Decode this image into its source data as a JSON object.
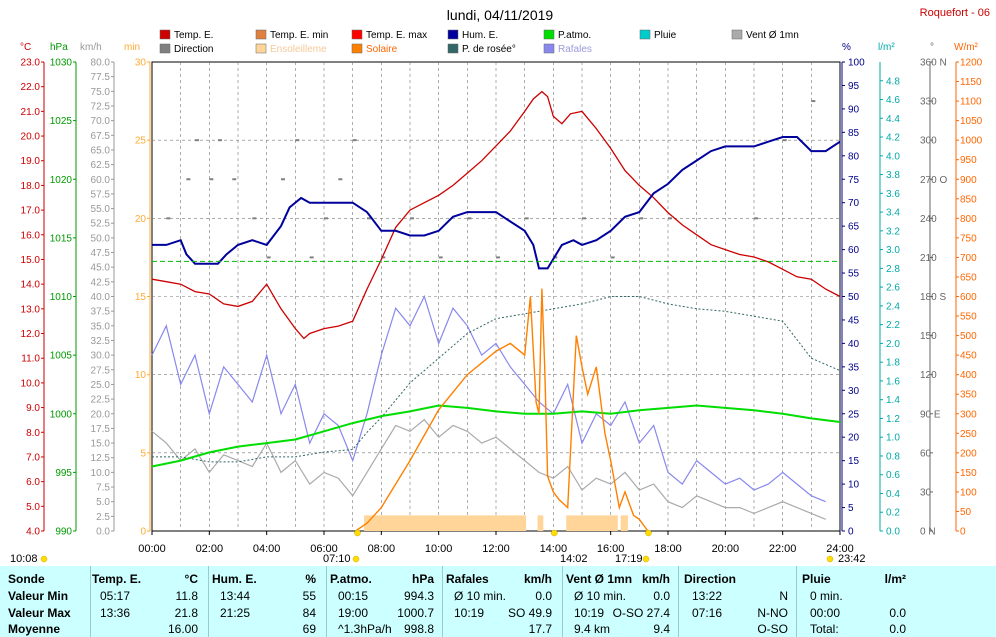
{
  "title": "lundi, 04/11/2019",
  "station": "Roquefort - 06",
  "colors": {
    "temp": "#cc0000",
    "temp_min": "#e08040",
    "temp_max": "#ff0000",
    "direction": "#808080",
    "ensoleillement": "#ffd59a",
    "solaire": "#ff8000",
    "hum": "#00009c",
    "dew": "#336666",
    "patmo": "#00dd00",
    "pluie": "#00cccc",
    "rafales": "#8888ee",
    "vent": "#aaaaaa",
    "hpa": "#009900",
    "kmh": "#888888",
    "min": "#ffaa33",
    "pct": "#000088",
    "lm2": "#00aaaa",
    "wm2": "#ff6600"
  },
  "legend": [
    {
      "label": "Temp. E.",
      "color": "#cc0000"
    },
    {
      "label": "Temp. E. min",
      "color": "#e08040"
    },
    {
      "label": "Temp. E. max",
      "color": "#ff0000"
    },
    {
      "label": "Hum. E.",
      "color": "#00009c"
    },
    {
      "label": "P.atmo.",
      "color": "#00dd00"
    },
    {
      "label": "Pluie",
      "color": "#00cccc"
    },
    {
      "label": "Vent Ø 1mn",
      "color": "#aaaaaa"
    },
    {
      "label": "Direction",
      "color": "#808080"
    },
    {
      "label": "Ensoleilleme",
      "color": "#ffd59a"
    },
    {
      "label": "Solaire",
      "color": "#ff8000"
    },
    {
      "label": "P. de rosée°",
      "color": "#336666"
    },
    {
      "label": "Rafales",
      "color": "#8888ee"
    }
  ],
  "axis_units": {
    "temp": "°C",
    "hpa": "hPa",
    "kmh": "km/h",
    "min": "min",
    "pct": "%",
    "lm2": "l/m²",
    "deg": "°",
    "wm2": "W/m²"
  },
  "chart_data": {
    "type": "line",
    "x_unit": "hour",
    "xlim": [
      0,
      24
    ],
    "x_ticks": [
      "00:00",
      "02:00",
      "04:00",
      "06:00",
      "08:00",
      "10:00",
      "12:00",
      "14:00",
      "16:00",
      "18:00",
      "20:00",
      "22:00",
      "24:00"
    ],
    "axes": {
      "temp": {
        "range": [
          4,
          23
        ],
        "ticks": [
          "4.0",
          "5.0",
          "6.0",
          "7.0",
          "8.0",
          "9.0",
          "10.0",
          "11.0",
          "12.0",
          "13.0",
          "14.0",
          "15.0",
          "16.0",
          "17.0",
          "18.0",
          "19.0",
          "20.0",
          "21.0",
          "22.0",
          "23.0"
        ]
      },
      "hpa": {
        "range": [
          990,
          1030
        ],
        "ticks": [
          "990",
          "995",
          "1000",
          "1005",
          "1010",
          "1015",
          "1020",
          "1025",
          "1030"
        ]
      },
      "kmh": {
        "range": [
          0,
          80
        ],
        "ticks": [
          "0.0",
          "2.5",
          "5.0",
          "7.5",
          "10.0",
          "12.5",
          "15.0",
          "17.5",
          "20.0",
          "22.5",
          "25.0",
          "27.5",
          "30.0",
          "32.5",
          "35.0",
          "37.5",
          "40.0",
          "42.5",
          "45.0",
          "47.5",
          "50.0",
          "52.5",
          "55.0",
          "57.5",
          "60.0",
          "62.5",
          "65.0",
          "67.5",
          "70.0",
          "72.5",
          "75.0",
          "77.5",
          "80.0"
        ]
      },
      "min": {
        "range": [
          0,
          30
        ],
        "ticks": [
          "0",
          "5",
          "10",
          "15",
          "20",
          "25",
          "30"
        ]
      },
      "pct": {
        "range": [
          0,
          100
        ],
        "ticks": [
          "0",
          "5",
          "10",
          "15",
          "20",
          "25",
          "30",
          "35",
          "40",
          "45",
          "50",
          "55",
          "60",
          "65",
          "70",
          "75",
          "80",
          "85",
          "90",
          "95",
          "100"
        ]
      },
      "lm2": {
        "range": [
          0,
          5
        ],
        "ticks": [
          "0.0",
          "0.2",
          "0.4",
          "0.6",
          "0.8",
          "1.0",
          "1.2",
          "1.4",
          "1.6",
          "1.8",
          "2.0",
          "2.2",
          "2.4",
          "2.6",
          "2.8",
          "3.0",
          "3.2",
          "3.4",
          "3.6",
          "3.8",
          "4.0",
          "4.2",
          "4.4",
          "4.6",
          "4.8"
        ]
      },
      "deg": {
        "range": [
          0,
          360
        ],
        "ticks": [
          "0 N",
          "30",
          "60",
          "90 E",
          "120",
          "150",
          "180 S",
          "210",
          "240",
          "270 O",
          "300",
          "330",
          "360 N"
        ]
      },
      "wm2": {
        "range": [
          0,
          1200
        ],
        "ticks": [
          "0",
          "50",
          "100",
          "150",
          "200",
          "250",
          "300",
          "350",
          "400",
          "450",
          "500",
          "550",
          "600",
          "650",
          "700",
          "750",
          "800",
          "850",
          "900",
          "950",
          "1000",
          "1050",
          "1100",
          "1150",
          "1200"
        ]
      }
    },
    "series": [
      {
        "name": "Temp. E.",
        "axis": "temp",
        "x": [
          0,
          0.5,
          1,
          1.5,
          2,
          2.5,
          3,
          3.5,
          4,
          4.5,
          5,
          5.3,
          5.5,
          6,
          6.5,
          7,
          7.5,
          8,
          8.5,
          9,
          9.5,
          10,
          10.5,
          11,
          11.5,
          12,
          12.5,
          13,
          13.3,
          13.6,
          13.8,
          14,
          14.3,
          14.6,
          15,
          15.5,
          16,
          16.5,
          17,
          17.5,
          18,
          18.5,
          19,
          19.5,
          20,
          20.5,
          21,
          21.5,
          22,
          22.5,
          23,
          23.5,
          24
        ],
        "values": [
          14.2,
          14.1,
          14.0,
          13.7,
          13.6,
          13.2,
          13.1,
          13.3,
          14.0,
          13.0,
          12.2,
          11.8,
          12.0,
          12.2,
          12.3,
          12.5,
          13.8,
          15.0,
          16.3,
          17.0,
          17.3,
          17.6,
          18.0,
          18.5,
          19.0,
          19.6,
          20.2,
          21.0,
          21.5,
          21.8,
          21.6,
          20.8,
          20.5,
          20.9,
          21.0,
          20.3,
          19.5,
          18.6,
          18.0,
          17.5,
          16.9,
          16.4,
          16.0,
          15.6,
          15.4,
          15.2,
          15.1,
          14.9,
          14.6,
          14.3,
          14.2,
          13.8,
          13.5
        ]
      },
      {
        "name": "Hum. E.",
        "axis": "pct",
        "x": [
          0,
          0.5,
          1,
          1.2,
          1.5,
          2,
          2.3,
          2.6,
          3,
          3.5,
          4,
          4.5,
          4.8,
          5.2,
          5.5,
          6,
          6.5,
          7,
          7.5,
          8,
          8.5,
          9,
          9.5,
          10,
          10.5,
          11,
          11.5,
          12,
          12.5,
          13,
          13.3,
          13.5,
          13.8,
          14,
          14.3,
          14.7,
          15,
          15.5,
          16,
          16.5,
          17,
          17.5,
          18,
          18.5,
          19,
          19.5,
          20,
          20.5,
          21,
          21.5,
          22,
          22.5,
          23,
          23.5,
          24
        ],
        "values": [
          61,
          61,
          62,
          59,
          57,
          57,
          57,
          59,
          61,
          62,
          61,
          65,
          69,
          71,
          70,
          70,
          70,
          70,
          68,
          64,
          64,
          63,
          63,
          64,
          67,
          68,
          68,
          68,
          66,
          64,
          61,
          56,
          56,
          58,
          61,
          62,
          61,
          62,
          64,
          67,
          68,
          72,
          74,
          77,
          79,
          81,
          82,
          82,
          82,
          83,
          84,
          84,
          81,
          81,
          83
        ]
      },
      {
        "name": "P.atmo.",
        "axis": "hpa",
        "x": [
          0,
          1,
          2,
          3,
          4,
          5,
          6,
          7,
          8,
          9,
          10,
          11,
          12,
          13,
          14,
          15,
          16,
          17,
          18,
          19,
          20,
          21,
          22,
          23,
          24
        ],
        "values": [
          995.5,
          996.0,
          996.7,
          997.2,
          997.5,
          997.8,
          998.5,
          999.2,
          999.8,
          1000.2,
          1000.7,
          1000.5,
          1000.2,
          1000.0,
          1000.0,
          1000.2,
          1000.0,
          1000.3,
          1000.5,
          1000.7,
          1000.5,
          1000.3,
          1000.0,
          999.6,
          999.3
        ]
      },
      {
        "name": "P. de rosée°",
        "axis": "temp",
        "x": [
          0,
          1,
          2,
          3,
          4,
          5,
          6,
          7,
          7.5,
          8,
          9,
          10,
          11,
          12,
          13,
          14,
          15,
          16,
          17,
          18,
          19,
          20,
          21,
          22,
          23,
          24
        ],
        "values": [
          7.0,
          7.0,
          6.8,
          6.8,
          7.0,
          7.0,
          7.2,
          7.3,
          8.0,
          8.6,
          10.0,
          11.0,
          12.0,
          12.6,
          12.8,
          13.0,
          13.2,
          13.5,
          13.5,
          13.2,
          13.0,
          12.9,
          12.7,
          12.5,
          11.0,
          10.5
        ]
      },
      {
        "name": "Solaire",
        "axis": "wm2",
        "x": [
          7.1,
          7.5,
          8,
          9,
          10,
          11,
          12,
          12.5,
          13,
          13.2,
          13.4,
          13.5,
          13.6,
          13.7,
          13.8,
          14,
          14.2,
          14.5,
          14.8,
          15,
          15.2,
          15.5,
          15.8,
          16,
          16.3,
          16.5,
          16.8,
          17,
          17.3
        ],
        "values": [
          0,
          20,
          60,
          180,
          310,
          400,
          460,
          480,
          450,
          600,
          330,
          300,
          620,
          420,
          140,
          100,
          80,
          60,
          500,
          420,
          350,
          420,
          250,
          180,
          60,
          100,
          40,
          30,
          0
        ]
      },
      {
        "name": "Rafales",
        "axis": "kmh",
        "x": [
          0,
          0.5,
          1,
          1.5,
          2,
          2.5,
          3,
          3.5,
          4,
          4.5,
          5,
          5.5,
          6,
          6.5,
          7,
          7.5,
          8,
          8.5,
          9,
          9.5,
          10,
          10.5,
          11,
          11.5,
          12,
          12.5,
          13,
          13.5,
          14,
          14.5,
          15,
          15.5,
          16,
          16.5,
          17,
          17.5,
          18,
          18.5,
          19,
          19.5,
          20,
          20.5,
          21,
          21.5,
          22,
          22.5,
          23,
          23.5
        ],
        "values": [
          30,
          35,
          25,
          30,
          20,
          28,
          25,
          22,
          30,
          20,
          25,
          15,
          20,
          18,
          12,
          20,
          30,
          38,
          35,
          40,
          32,
          38,
          35,
          30,
          32,
          28,
          25,
          22,
          20,
          25,
          15,
          20,
          18,
          22,
          15,
          18,
          10,
          8,
          12,
          10,
          8,
          9,
          7,
          8,
          10,
          8,
          6,
          5
        ]
      },
      {
        "name": "Vent Ø 1mn",
        "axis": "kmh",
        "x": [
          0,
          0.5,
          1,
          1.5,
          2,
          2.5,
          3,
          3.5,
          4,
          4.5,
          5,
          5.5,
          6,
          6.5,
          7,
          7.5,
          8,
          8.5,
          9,
          9.5,
          10,
          10.5,
          11,
          11.5,
          12,
          12.5,
          13,
          13.5,
          14,
          14.5,
          15,
          15.5,
          16,
          16.5,
          17,
          17.5,
          18,
          18.5,
          19,
          19.5,
          20,
          20.5,
          21,
          21.5,
          22,
          22.5,
          23,
          23.5
        ],
        "values": [
          17,
          15,
          12,
          14,
          10,
          13,
          12,
          11,
          15,
          10,
          12,
          8,
          10,
          9,
          6,
          10,
          14,
          18,
          17,
          19,
          16,
          18,
          17,
          15,
          16,
          14,
          12,
          10,
          9,
          11,
          7,
          9,
          8,
          10,
          7,
          8,
          5,
          4,
          6,
          5,
          4,
          4,
          3,
          4,
          5,
          4,
          3,
          2
        ]
      }
    ],
    "direction_points": [
      {
        "x": 0.5,
        "value": 240
      },
      {
        "x": 1.2,
        "value": 270
      },
      {
        "x": 1.5,
        "value": 300
      },
      {
        "x": 2,
        "value": 270
      },
      {
        "x": 2.3,
        "value": 300
      },
      {
        "x": 2.8,
        "value": 270
      },
      {
        "x": 3.5,
        "value": 240
      },
      {
        "x": 4,
        "value": 210
      },
      {
        "x": 4.5,
        "value": 270
      },
      {
        "x": 5,
        "value": 300
      },
      {
        "x": 5.5,
        "value": 210
      },
      {
        "x": 6,
        "value": 240
      },
      {
        "x": 6.5,
        "value": 270
      },
      {
        "x": 7,
        "value": 300
      },
      {
        "x": 7.5,
        "value": 240
      },
      {
        "x": 8,
        "value": 210
      },
      {
        "x": 9,
        "value": 240
      },
      {
        "x": 10,
        "value": 210
      },
      {
        "x": 11,
        "value": 240
      },
      {
        "x": 12,
        "value": 210
      },
      {
        "x": 13,
        "value": 240
      },
      {
        "x": 14,
        "value": 210
      },
      {
        "x": 15,
        "value": 240
      },
      {
        "x": 16,
        "value": 210
      },
      {
        "x": 17,
        "value": 240
      },
      {
        "x": 18,
        "value": 240
      },
      {
        "x": 21,
        "value": 240
      },
      {
        "x": 22,
        "value": 300
      },
      {
        "x": 23,
        "value": 330
      }
    ],
    "sunshine_bands": [
      [
        7.4,
        13.05
      ],
      [
        13.45,
        13.65
      ],
      [
        14.45,
        16.25
      ],
      [
        16.35,
        16.6
      ]
    ],
    "sun_markers": {
      "sunrise": "07:10",
      "sunset": "17:19",
      "solar_noon": "14:02",
      "left": "10:08",
      "right": "23:42",
      "x_top_sunrise": 7.1666,
      "x_top_noon": 14.0333,
      "x_top_sunset": 17.3166
    }
  },
  "table": {
    "columns": [
      {
        "title": "Sonde",
        "unit": ""
      },
      {
        "title": "Temp. E.",
        "unit": "°C"
      },
      {
        "title": "Hum. E.",
        "unit": "%"
      },
      {
        "title": "P.atmo.",
        "unit": "hPa"
      },
      {
        "title": "Rafales",
        "unit": "km/h"
      },
      {
        "title": "Vent Ø 1mn",
        "unit": "km/h"
      },
      {
        "title": "Direction",
        "unit": ""
      },
      {
        "title": "Pluie",
        "unit": "l/m²"
      }
    ],
    "rows": [
      {
        "label": "Valeur Min",
        "cells": [
          [
            "05:17",
            "11.8"
          ],
          [
            "13:44",
            "55"
          ],
          [
            "00:15",
            "994.3"
          ],
          [
            "Ø 10 min.",
            "0.0"
          ],
          [
            "Ø 10 min.",
            "0.0"
          ],
          [
            "13:22",
            "N"
          ],
          [
            "0 min.",
            ""
          ]
        ]
      },
      {
        "label": "Valeur Max",
        "cells": [
          [
            "13:36",
            "21.8"
          ],
          [
            "21:25",
            "84"
          ],
          [
            "19:00",
            "1000.7"
          ],
          [
            "10:19",
            "SO 49.9"
          ],
          [
            "10:19",
            "O-SO 27.4"
          ],
          [
            "07:16",
            "N-NO"
          ],
          [
            "00:00",
            "0.0"
          ]
        ]
      },
      {
        "label": "Moyenne",
        "cells": [
          [
            "",
            "16.00"
          ],
          [
            "",
            "69"
          ],
          [
            "^1.3hPa/h",
            "998.8"
          ],
          [
            "",
            "17.7"
          ],
          [
            "9.4 km",
            "9.4"
          ],
          [
            "",
            "O-SO"
          ],
          [
            "Total:",
            "0.0"
          ]
        ]
      }
    ]
  }
}
